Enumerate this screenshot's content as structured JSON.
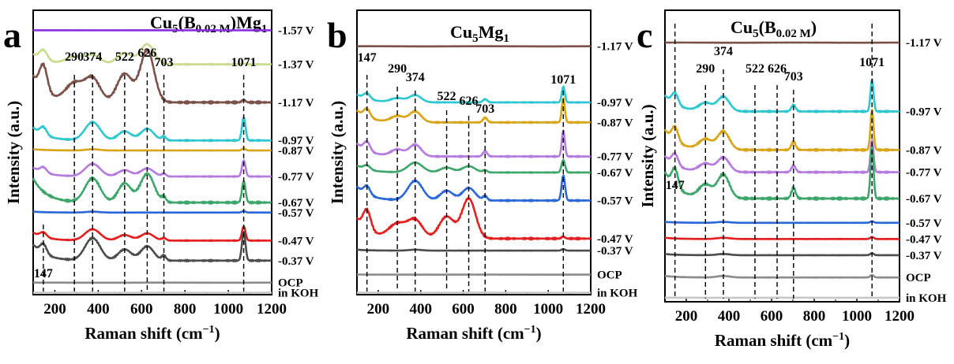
{
  "chart_data": [
    {
      "type": "line",
      "panel_letter": "a",
      "title_main": "Cu",
      "title_sub1": "5",
      "title_mid": "(B",
      "title_sub2": "0.02 M",
      "title_end": ")Mg",
      "title_sub3": "1",
      "xlabel": "Raman shift (cm",
      "xlabel_sup": "−1",
      "xlabel_end": ")",
      "ylabel": "Intensity (a.u.)",
      "xlim": [
        100,
        1200
      ],
      "xticks": [
        "200",
        "400",
        "600",
        "800",
        "1000",
        "1200"
      ],
      "xtick_values": [
        200,
        400,
        600,
        800,
        1000,
        1200
      ],
      "peaks": [
        {
          "label": "147",
          "x": 147
        },
        {
          "label": "290",
          "x": 290
        },
        {
          "label": "374",
          "x": 374
        },
        {
          "label": "522",
          "x": 522
        },
        {
          "label": "626",
          "x": 626
        },
        {
          "label": "703",
          "x": 703
        },
        {
          "label": "1071",
          "x": 1071
        }
      ],
      "series": [
        {
          "name": "-1.57 V",
          "color": "#8a2be2",
          "offset": 13.2,
          "profile": "flat",
          "amp": 0.05
        },
        {
          "name": "-1.37 V",
          "color": "#c7dc8e",
          "offset": 11.5,
          "profile": "oxide",
          "amp": 1.0
        },
        {
          "name": "-1.17 V",
          "color": "#7b5249",
          "offset": 9.6,
          "profile": "oxide",
          "amp": 2.6
        },
        {
          "name": "-0.97 V",
          "color": "#2ec7cf",
          "offset": 7.7,
          "profile": "carbonate_oxide",
          "amp": 1.3
        },
        {
          "name": "-0.87 V",
          "color": "#d8a519",
          "offset": 7.2,
          "profile": "weak",
          "amp": 0.4
        },
        {
          "name": "-0.77 V",
          "color": "#b57bdd",
          "offset": 5.9,
          "profile": "carbonate_oxide",
          "amp": 0.9
        },
        {
          "name": "-0.67 V",
          "color": "#3fa66b",
          "offset": 4.6,
          "profile": "oxide_carbonate",
          "amp": 2.4
        },
        {
          "name": "-0.57 V",
          "color": "#2a68d8",
          "offset": 4.1,
          "profile": "weak",
          "amp": 0.3
        },
        {
          "name": "-0.47 V",
          "color": "#e41f1f",
          "offset": 2.7,
          "profile": "carbonate_oxide",
          "amp": 0.8
        },
        {
          "name": "-0.37 V",
          "color": "#4d4d4d",
          "offset": 1.7,
          "profile": "carbonate_oxide",
          "amp": 1.6
        },
        {
          "name": "OCP",
          "color": "#8c8c8c",
          "offset": 0.6,
          "profile": "flat",
          "amp": 0.1
        },
        {
          "name": "in KOH",
          "color": "#c8c8c8",
          "offset": 0.1,
          "profile": "flat",
          "amp": 0.05
        }
      ]
    },
    {
      "type": "line",
      "panel_letter": "b",
      "title_main": "Cu",
      "title_sub1": "5",
      "title_mid": "Mg",
      "title_sub2": "1",
      "title_end": "",
      "title_sub3": "",
      "xlabel": "Raman shift (cm",
      "xlabel_sup": "−1",
      "xlabel_end": ")",
      "ylabel": "Intensity (a.u.)",
      "xlim": [
        100,
        1200
      ],
      "xticks": [
        "200",
        "400",
        "600",
        "800",
        "1000",
        "1200"
      ],
      "xtick_values": [
        200,
        400,
        600,
        800,
        1000,
        1200
      ],
      "peaks": [
        {
          "label": "147",
          "x": 147
        },
        {
          "label": "290",
          "x": 290
        },
        {
          "label": "374",
          "x": 374
        },
        {
          "label": "522",
          "x": 522
        },
        {
          "label": "626",
          "x": 626
        },
        {
          "label": "703",
          "x": 703
        },
        {
          "label": "1071",
          "x": 1071
        }
      ],
      "series": [
        {
          "name": "-1.17 V",
          "color": "#7b5249",
          "offset": 12.4,
          "profile": "flat",
          "amp": 0.2
        },
        {
          "name": "-0.97 V",
          "color": "#2ec7cf",
          "offset": 9.6,
          "profile": "carbonate",
          "amp": 0.8
        },
        {
          "name": "-0.87 V",
          "color": "#d8a519",
          "offset": 8.6,
          "profile": "carbonate",
          "amp": 1.2
        },
        {
          "name": "-0.77 V",
          "color": "#b57bdd",
          "offset": 6.9,
          "profile": "carbonate",
          "amp": 1.3
        },
        {
          "name": "-0.67 V",
          "color": "#3fa66b",
          "offset": 6.1,
          "profile": "carbonate_oxide",
          "amp": 0.7
        },
        {
          "name": "-0.57 V",
          "color": "#2a68d8",
          "offset": 4.7,
          "profile": "carbonate_oxide",
          "amp": 1.4
        },
        {
          "name": "-0.47 V",
          "color": "#e41f1f",
          "offset": 2.8,
          "profile": "oxide",
          "amp": 2.0
        },
        {
          "name": "-0.37 V",
          "color": "#4d4d4d",
          "offset": 2.2,
          "profile": "weak",
          "amp": 0.3
        },
        {
          "name": "OCP",
          "color": "#8c8c8c",
          "offset": 1.0,
          "profile": "flat",
          "amp": 0.1
        },
        {
          "name": "in KOH",
          "color": "#c8c8c8",
          "offset": 0.1,
          "profile": "flat",
          "amp": 0.05
        }
      ]
    },
    {
      "type": "line",
      "panel_letter": "c",
      "title_main": "Cu",
      "title_sub1": "5",
      "title_mid": "(B",
      "title_sub2": "0.02 M",
      "title_end": ")",
      "title_sub3": "",
      "xlabel": "Raman shift (cm",
      "xlabel_sup": "−1",
      "xlabel_end": ")",
      "ylabel": "Intensity (a.u.)",
      "xlim": [
        100,
        1200
      ],
      "xticks": [
        "200",
        "400",
        "600",
        "800",
        "1000",
        "1200"
      ],
      "xtick_values": [
        200,
        400,
        600,
        800,
        1000,
        1200
      ],
      "peaks": [
        {
          "label": "147",
          "x": 147
        },
        {
          "label": "290",
          "x": 290
        },
        {
          "label": "374",
          "x": 374
        },
        {
          "label": "522",
          "x": 522
        },
        {
          "label": "626",
          "x": 626
        },
        {
          "label": "703",
          "x": 703
        },
        {
          "label": "1071",
          "x": 1071
        }
      ],
      "series": [
        {
          "name": "-1.17 V",
          "color": "#7b5249",
          "offset": 12.8,
          "profile": "flat",
          "amp": 0.2
        },
        {
          "name": "-0.97 V",
          "color": "#2ec7cf",
          "offset": 9.4,
          "profile": "carbonate",
          "amp": 1.6
        },
        {
          "name": "-0.87 V",
          "color": "#d8a519",
          "offset": 7.5,
          "profile": "carbonate",
          "amp": 2.0
        },
        {
          "name": "-0.77 V",
          "color": "#b57bdd",
          "offset": 6.4,
          "profile": "carbonate",
          "amp": 1.6
        },
        {
          "name": "-0.67 V",
          "color": "#3fa66b",
          "offset": 5.1,
          "profile": "carbonate",
          "amp": 2.6
        },
        {
          "name": "-0.57 V",
          "color": "#2a68d8",
          "offset": 3.9,
          "profile": "weak",
          "amp": 0.3
        },
        {
          "name": "-0.47 V",
          "color": "#e41f1f",
          "offset": 3.1,
          "profile": "weak",
          "amp": 0.4
        },
        {
          "name": "-0.37 V",
          "color": "#4d4d4d",
          "offset": 2.3,
          "profile": "weak",
          "amp": 0.4
        },
        {
          "name": "OCP",
          "color": "#8c8c8c",
          "offset": 1.2,
          "profile": "weak",
          "amp": 0.5
        },
        {
          "name": "in KOH",
          "color": "#c8c8c8",
          "offset": 0.2,
          "profile": "flat",
          "amp": 0.05
        }
      ]
    }
  ]
}
